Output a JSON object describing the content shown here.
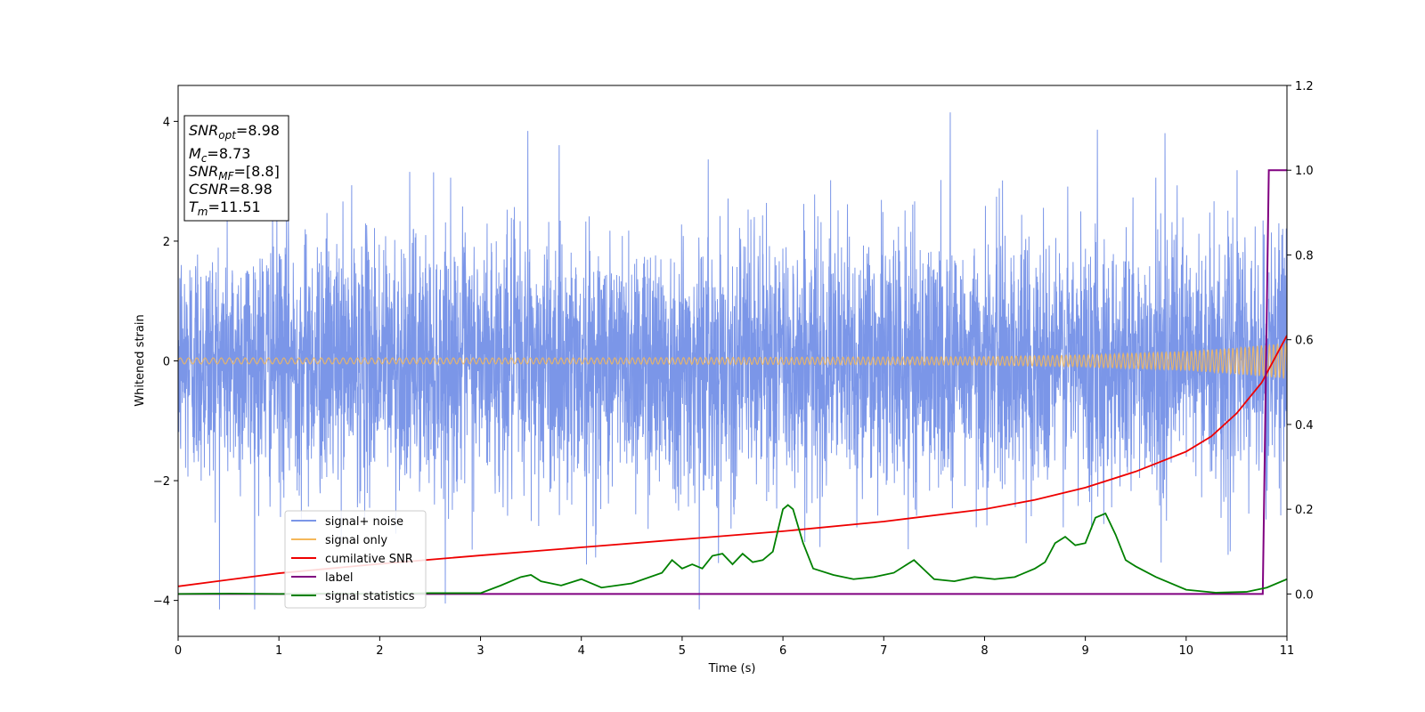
{
  "chart_data": {
    "type": "line",
    "xlabel": "Time (s)",
    "ylabel": "Whitened strain",
    "xlim": [
      0,
      11
    ],
    "ylim": [
      -4.6,
      4.6
    ],
    "y2lim": [
      -0.1,
      1.2
    ],
    "x_ticks": [
      "0",
      "1",
      "2",
      "3",
      "4",
      "5",
      "6",
      "7",
      "8",
      "9",
      "10",
      "11"
    ],
    "y_ticks": [
      "−4",
      "−2",
      "0",
      "2",
      "4"
    ],
    "y2_ticks": [
      "0.0",
      "0.2",
      "0.4",
      "0.6",
      "0.8",
      "1.0",
      "1.2"
    ],
    "grid": false,
    "legend_position": "lower-left",
    "info_box": {
      "snr_opt": {
        "base": "SNR",
        "sub": "opt",
        "value": "=8.98"
      },
      "mc": {
        "base": "M",
        "sub": "c",
        "value": "=8.73"
      },
      "snr_mf": {
        "base": "SNR",
        "sub": "MF",
        "value": "=[8.8]"
      },
      "csnr": {
        "base": "CSNR",
        "value": "=8.98"
      },
      "tm": {
        "base": "T",
        "sub": "m",
        "value": "=11.51"
      }
    },
    "series": [
      {
        "name": "signal+ noise",
        "color": "#7b96e8",
        "axis": "left",
        "noise": {
          "std": 1.05,
          "peak_max": 4.15,
          "trough_min": -4.15,
          "notable_spikes": [
            [
              7.66,
              4.15
            ],
            [
              9.12,
              3.86
            ],
            [
              3.47,
              3.84
            ],
            [
              5.17,
              -4.15
            ],
            [
              4.05,
              -3.4
            ]
          ]
        }
      },
      {
        "name": "signal only",
        "color": "#f5b85a",
        "axis": "left",
        "envelope": {
          "t": [
            0,
            2,
            4,
            6,
            8,
            9,
            10,
            10.5,
            11
          ],
          "amp": [
            0.05,
            0.05,
            0.05,
            0.06,
            0.07,
            0.1,
            0.16,
            0.22,
            0.3
          ]
        }
      },
      {
        "name": "cumilative SNR",
        "color": "#ee0000",
        "axis": "right",
        "x": [
          0,
          1,
          2,
          3,
          4,
          5,
          6,
          7,
          8,
          8.5,
          9,
          9.5,
          10,
          10.25,
          10.5,
          10.75,
          11
        ],
        "values": [
          0.018,
          0.049,
          0.071,
          0.091,
          0.11,
          0.129,
          0.148,
          0.171,
          0.2,
          0.222,
          0.251,
          0.289,
          0.336,
          0.372,
          0.426,
          0.499,
          0.61
        ]
      },
      {
        "name": "label",
        "color": "#800080",
        "axis": "right",
        "x": [
          0,
          10.76,
          10.82,
          11
        ],
        "values": [
          0,
          0,
          1.0,
          1.0
        ]
      },
      {
        "name": "signal statistics",
        "color": "#008000",
        "axis": "right",
        "x": [
          0,
          0.5,
          1,
          1.5,
          2,
          2.5,
          3,
          3.2,
          3.4,
          3.5,
          3.6,
          3.8,
          4,
          4.2,
          4.5,
          4.8,
          4.9,
          5,
          5.1,
          5.2,
          5.3,
          5.4,
          5.5,
          5.6,
          5.7,
          5.8,
          5.9,
          6,
          6.05,
          6.1,
          6.2,
          6.3,
          6.5,
          6.7,
          6.9,
          7,
          7.1,
          7.3,
          7.5,
          7.7,
          7.9,
          8.1,
          8.3,
          8.5,
          8.6,
          8.7,
          8.8,
          8.9,
          9,
          9.1,
          9.2,
          9.3,
          9.4,
          9.5,
          9.7,
          10,
          10.3,
          10.6,
          10.8,
          11
        ],
        "values": [
          0.0,
          0.001,
          0.0,
          0.001,
          0.0,
          0.002,
          0.002,
          0.02,
          0.04,
          0.045,
          0.03,
          0.02,
          0.035,
          0.015,
          0.025,
          0.05,
          0.08,
          0.06,
          0.07,
          0.06,
          0.09,
          0.095,
          0.07,
          0.095,
          0.075,
          0.08,
          0.1,
          0.2,
          0.21,
          0.2,
          0.12,
          0.06,
          0.045,
          0.035,
          0.04,
          0.045,
          0.05,
          0.08,
          0.035,
          0.03,
          0.04,
          0.035,
          0.04,
          0.06,
          0.075,
          0.12,
          0.135,
          0.115,
          0.12,
          0.18,
          0.19,
          0.14,
          0.08,
          0.065,
          0.04,
          0.01,
          0.003,
          0.005,
          0.015,
          0.035
        ]
      }
    ]
  }
}
